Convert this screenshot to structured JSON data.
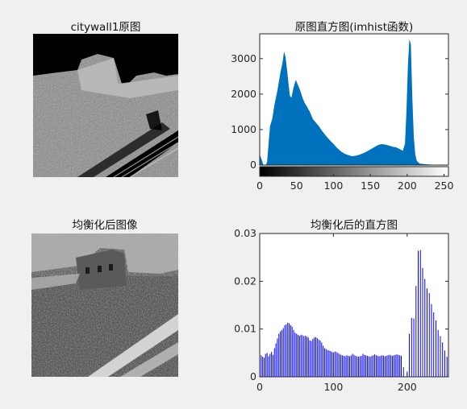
{
  "figure": {
    "colors": {
      "background": "#f0f0f0",
      "axes": "#ffffff",
      "axis_line": "#262626",
      "hist_fill": "#0072bd",
      "stem": "#0000ff"
    }
  },
  "panels": {
    "original_image": {
      "title": "citywall1原图"
    },
    "equalized_image": {
      "title": "均衡化后图像"
    }
  },
  "chart_data": [
    {
      "type": "bar",
      "title": "原图直方图(imhist函数)",
      "xlabel": "",
      "ylabel": "",
      "xlim": [
        0,
        256
      ],
      "ylim": [
        0,
        3700
      ],
      "x_ticks": [
        "0",
        "50",
        "100",
        "150",
        "200",
        "250"
      ],
      "y_ticks": [
        "0",
        "1000",
        "2000",
        "3000"
      ],
      "colorbar": "grayscale 0-255 below the x axis",
      "series": [
        {
          "name": "",
          "points": [
            [
              0,
              300
            ],
            [
              3,
              130
            ],
            [
              5,
              0
            ],
            [
              8,
              0
            ],
            [
              10,
              80
            ],
            [
              12,
              600
            ],
            [
              14,
              1100
            ],
            [
              17,
              1300
            ],
            [
              20,
              1700
            ],
            [
              24,
              2100
            ],
            [
              28,
              2600
            ],
            [
              31,
              2900
            ],
            [
              33,
              3200
            ],
            [
              35,
              3050
            ],
            [
              37,
              2700
            ],
            [
              39,
              2300
            ],
            [
              41,
              1950
            ],
            [
              43,
              1900
            ],
            [
              46,
              2200
            ],
            [
              49,
              2400
            ],
            [
              52,
              2250
            ],
            [
              55,
              2100
            ],
            [
              58,
              1900
            ],
            [
              61,
              1750
            ],
            [
              64,
              1650
            ],
            [
              68,
              1500
            ],
            [
              72,
              1300
            ],
            [
              76,
              1200
            ],
            [
              80,
              1100
            ],
            [
              85,
              950
            ],
            [
              90,
              820
            ],
            [
              95,
              700
            ],
            [
              100,
              600
            ],
            [
              105,
              480
            ],
            [
              110,
              390
            ],
            [
              115,
              320
            ],
            [
              120,
              280
            ],
            [
              125,
              250
            ],
            [
              130,
              260
            ],
            [
              135,
              290
            ],
            [
              140,
              330
            ],
            [
              145,
              380
            ],
            [
              150,
              440
            ],
            [
              155,
              500
            ],
            [
              160,
              560
            ],
            [
              165,
              590
            ],
            [
              170,
              580
            ],
            [
              175,
              550
            ],
            [
              180,
              520
            ],
            [
              185,
              500
            ],
            [
              190,
              450
            ],
            [
              194,
              400
            ],
            [
              197,
              600
            ],
            [
              199,
              1500
            ],
            [
              201,
              2800
            ],
            [
              203,
              3550
            ],
            [
              205,
              3400
            ],
            [
              207,
              1900
            ],
            [
              209,
              800
            ],
            [
              211,
              300
            ],
            [
              213,
              120
            ],
            [
              217,
              40
            ],
            [
              230,
              15
            ],
            [
              255,
              0
            ]
          ]
        }
      ]
    },
    {
      "type": "bar",
      "title": "均衡化后的直方图",
      "xlabel": "",
      "ylabel": "",
      "xlim": [
        0,
        256
      ],
      "ylim": [
        0,
        0.03
      ],
      "x_ticks": [
        "0",
        "100",
        "200"
      ],
      "y_ticks": [
        "0",
        "0.01",
        "0.02",
        "0.03"
      ],
      "series": [
        {
          "name": "",
          "points": [
            [
              2,
              0.0045
            ],
            [
              4,
              0.0042
            ],
            [
              6,
              0.004
            ],
            [
              8,
              0.0048
            ],
            [
              10,
              0.005
            ],
            [
              12,
              0.0043
            ],
            [
              14,
              0.0048
            ],
            [
              16,
              0.0052
            ],
            [
              18,
              0.0046
            ],
            [
              20,
              0.006
            ],
            [
              22,
              0.007
            ],
            [
              24,
              0.008
            ],
            [
              26,
              0.009
            ],
            [
              28,
              0.0095
            ],
            [
              30,
              0.0098
            ],
            [
              32,
              0.0102
            ],
            [
              34,
              0.0108
            ],
            [
              36,
              0.011
            ],
            [
              38,
              0.0113
            ],
            [
              40,
              0.0112
            ],
            [
              42,
              0.0108
            ],
            [
              44,
              0.0105
            ],
            [
              46,
              0.0098
            ],
            [
              48,
              0.0092
            ],
            [
              50,
              0.009
            ],
            [
              52,
              0.0088
            ],
            [
              54,
              0.0086
            ],
            [
              56,
              0.0088
            ],
            [
              58,
              0.0087
            ],
            [
              60,
              0.0085
            ],
            [
              62,
              0.0086
            ],
            [
              64,
              0.0084
            ],
            [
              66,
              0.0082
            ],
            [
              68,
              0.0076
            ],
            [
              70,
              0.0075
            ],
            [
              72,
              0.0079
            ],
            [
              74,
              0.0082
            ],
            [
              76,
              0.0083
            ],
            [
              78,
              0.0081
            ],
            [
              80,
              0.0078
            ],
            [
              82,
              0.0076
            ],
            [
              84,
              0.0072
            ],
            [
              86,
              0.0065
            ],
            [
              88,
              0.006
            ],
            [
              90,
              0.0058
            ],
            [
              92,
              0.0056
            ],
            [
              94,
              0.0055
            ],
            [
              96,
              0.0054
            ],
            [
              98,
              0.0052
            ],
            [
              100,
              0.0051
            ],
            [
              102,
              0.0053
            ],
            [
              104,
              0.0052
            ],
            [
              106,
              0.005
            ],
            [
              108,
              0.0048
            ],
            [
              110,
              0.0046
            ],
            [
              112,
              0.0045
            ],
            [
              114,
              0.0044
            ],
            [
              116,
              0.0043
            ],
            [
              118,
              0.0045
            ],
            [
              120,
              0.0044
            ],
            [
              122,
              0.0043
            ],
            [
              124,
              0.0045
            ],
            [
              126,
              0.0048
            ],
            [
              128,
              0.0046
            ],
            [
              130,
              0.0044
            ],
            [
              132,
              0.0043
            ],
            [
              134,
              0.0042
            ],
            [
              136,
              0.0043
            ],
            [
              138,
              0.0044
            ],
            [
              140,
              0.0048
            ],
            [
              142,
              0.0046
            ],
            [
              144,
              0.0045
            ],
            [
              146,
              0.0044
            ],
            [
              148,
              0.0043
            ],
            [
              150,
              0.0042
            ],
            [
              152,
              0.0044
            ],
            [
              154,
              0.0045
            ],
            [
              156,
              0.0047
            ],
            [
              158,
              0.0045
            ],
            [
              160,
              0.0044
            ],
            [
              162,
              0.0043
            ],
            [
              164,
              0.0044
            ],
            [
              166,
              0.0045
            ],
            [
              168,
              0.0044
            ],
            [
              170,
              0.0043
            ],
            [
              172,
              0.0044
            ],
            [
              174,
              0.0045
            ],
            [
              176,
              0.0046
            ],
            [
              178,
              0.0045
            ],
            [
              180,
              0.0044
            ],
            [
              182,
              0.0045
            ],
            [
              184,
              0.0046
            ],
            [
              186,
              0.0047
            ],
            [
              188,
              0.0046
            ],
            [
              190,
              0.0045
            ],
            [
              192,
              0.0044
            ],
            [
              195,
              0.002
            ],
            [
              200,
              0.0011
            ],
            [
              203,
              0.009
            ],
            [
              206,
              0.0123
            ],
            [
              209,
              0.0122
            ],
            [
              212,
              0.019
            ],
            [
              215,
              0.0264
            ],
            [
              218,
              0.0265
            ],
            [
              221,
              0.0228
            ],
            [
              224,
              0.0205
            ],
            [
              227,
              0.0185
            ],
            [
              230,
              0.0175
            ],
            [
              233,
              0.0152
            ],
            [
              236,
              0.0135
            ],
            [
              239,
              0.0118
            ],
            [
              242,
              0.0098
            ],
            [
              245,
              0.0085
            ],
            [
              248,
              0.0072
            ],
            [
              251,
              0.0055
            ],
            [
              254,
              0.0042
            ]
          ]
        }
      ]
    }
  ]
}
